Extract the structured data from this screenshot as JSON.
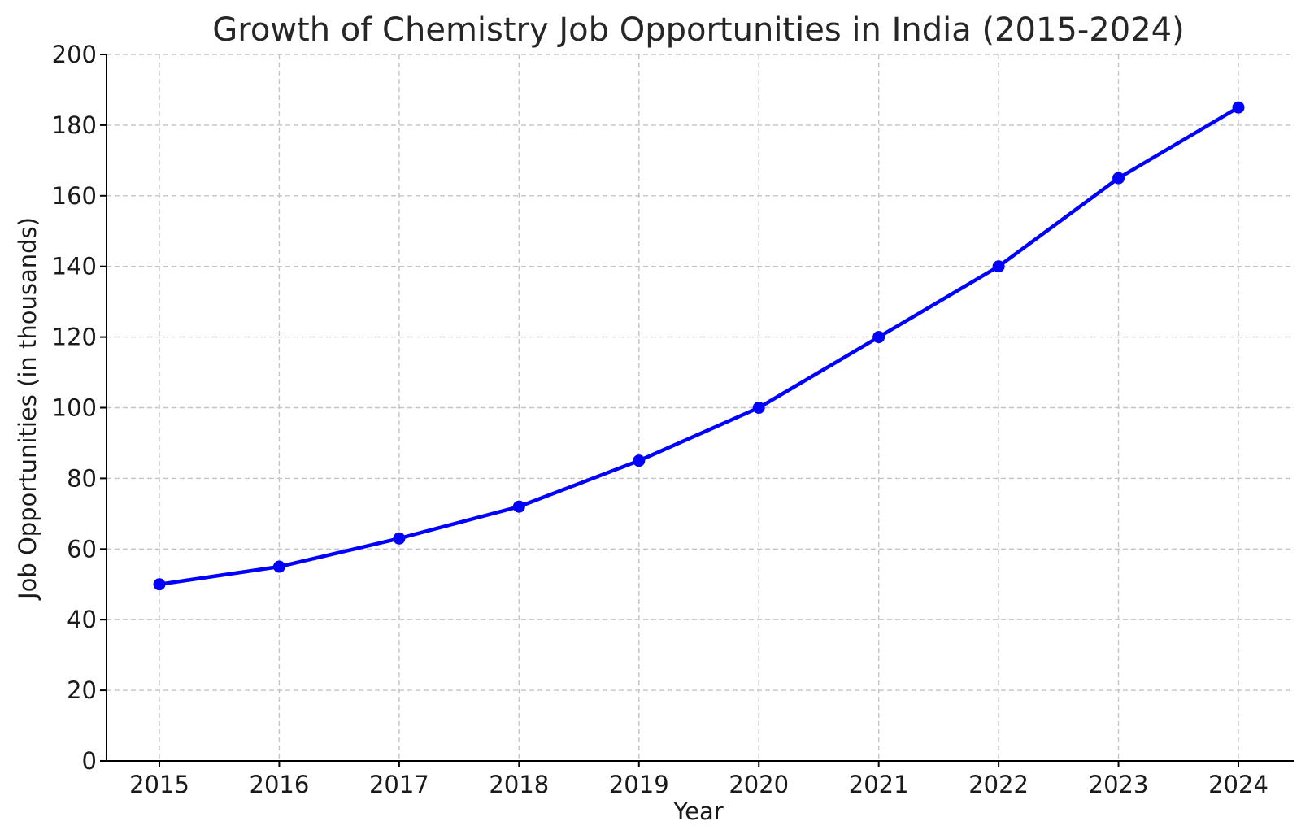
{
  "chart_data": {
    "type": "line",
    "title": "Growth of Chemistry Job Opportunities in India (2015-2024)",
    "xlabel": "Year",
    "ylabel": "Job Opportunities (in thousands)",
    "x": [
      2015,
      2016,
      2017,
      2018,
      2019,
      2020,
      2021,
      2022,
      2023,
      2024
    ],
    "x_tick_labels": [
      "2015",
      "2016",
      "2017",
      "2018",
      "2019",
      "2020",
      "2021",
      "2022",
      "2023",
      "2024"
    ],
    "y_ticks": [
      0,
      20,
      40,
      60,
      80,
      100,
      120,
      140,
      160,
      180,
      200
    ],
    "y_tick_labels": [
      "0",
      "20",
      "40",
      "60",
      "80",
      "100",
      "120",
      "140",
      "160",
      "180",
      "200"
    ],
    "ylim": [
      0,
      200
    ],
    "grid": true,
    "series": [
      {
        "values": [
          50,
          55,
          63,
          72,
          85,
          100,
          120,
          140,
          165,
          185
        ],
        "color": "#0000ff",
        "marker": "circle"
      }
    ]
  }
}
